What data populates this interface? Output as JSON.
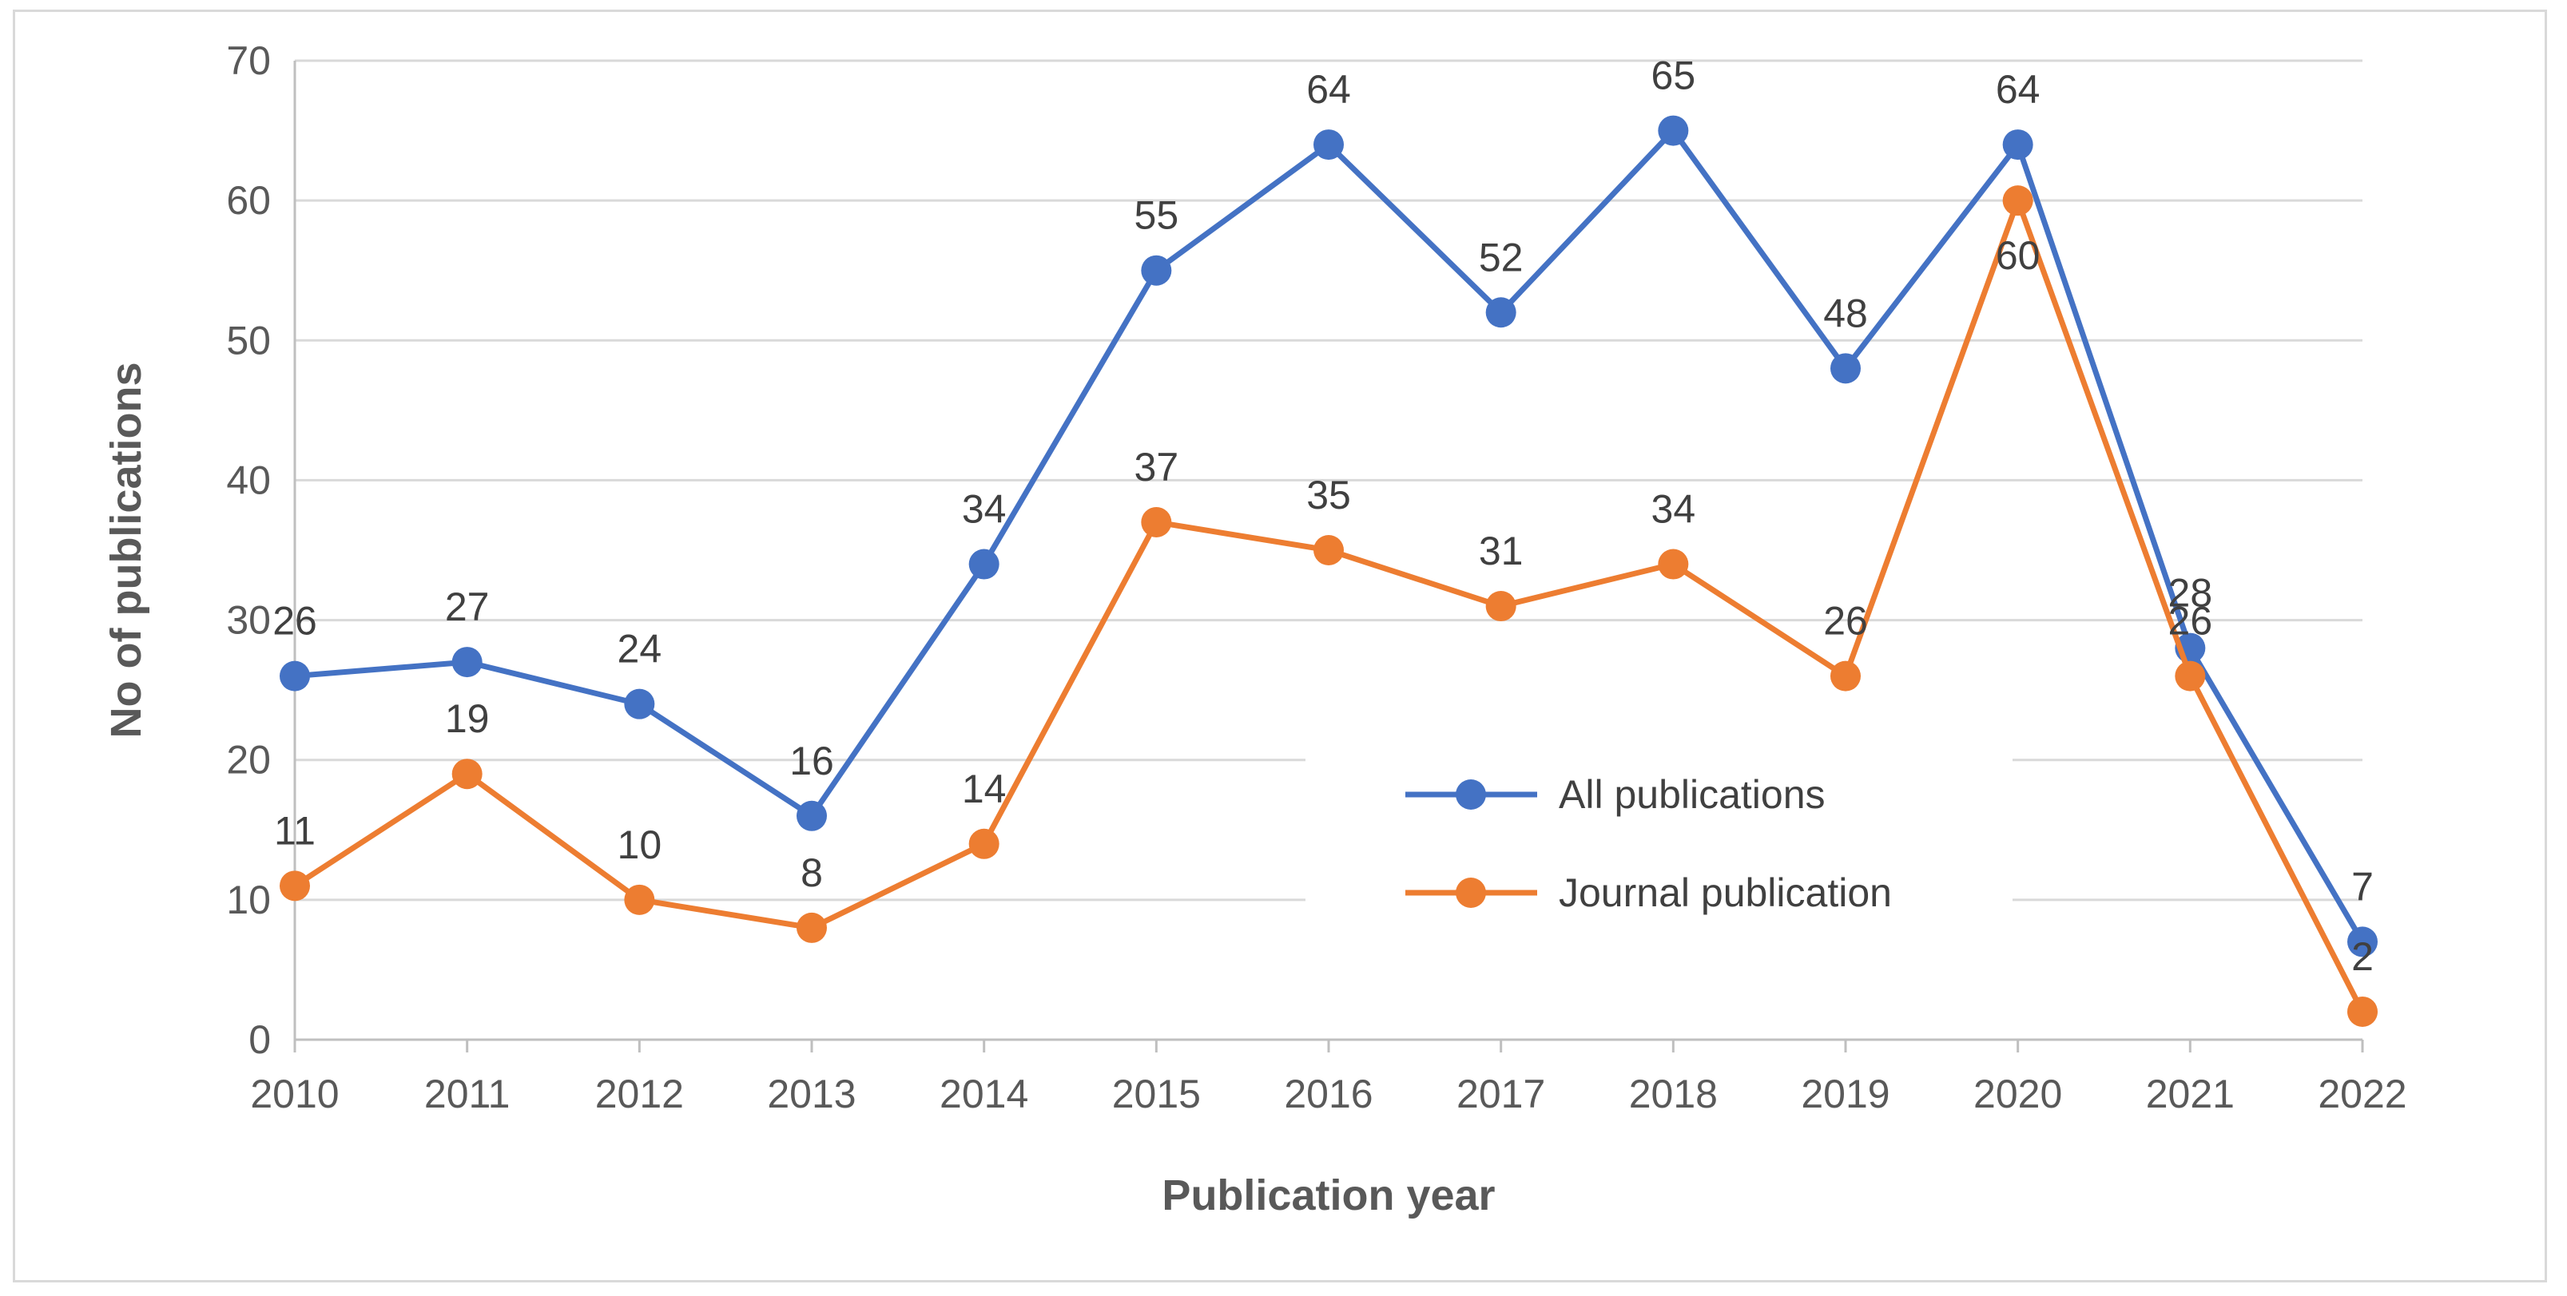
{
  "chart_data": {
    "type": "line",
    "title": "",
    "xlabel": "Publication year",
    "ylabel": "No of publications",
    "categories": [
      "2010",
      "2011",
      "2012",
      "2013",
      "2014",
      "2015",
      "2016",
      "2017",
      "2018",
      "2019",
      "2020",
      "2021",
      "2022"
    ],
    "ylim": [
      0,
      70
    ],
    "yticks": [
      0,
      10,
      20,
      30,
      40,
      50,
      60,
      70
    ],
    "grid": true,
    "legend_position": "center-right inside plot",
    "series": [
      {
        "name": "All publications",
        "color": "#4472c4",
        "values": [
          26,
          27,
          24,
          16,
          34,
          55,
          64,
          52,
          65,
          48,
          64,
          28,
          7
        ],
        "labels": [
          "26",
          "27",
          "24",
          "16",
          "34",
          "55",
          "64",
          "52",
          "65",
          "48",
          "64",
          "28",
          "7"
        ]
      },
      {
        "name": "Journal publication",
        "color": "#ed7d31",
        "values": [
          11,
          19,
          10,
          8,
          14,
          37,
          35,
          31,
          34,
          26,
          60,
          26,
          2
        ],
        "labels": [
          "11",
          "19",
          "10",
          "8",
          "14",
          "37",
          "35",
          "31",
          "34",
          "26",
          "60",
          "26",
          "2"
        ]
      }
    ]
  }
}
